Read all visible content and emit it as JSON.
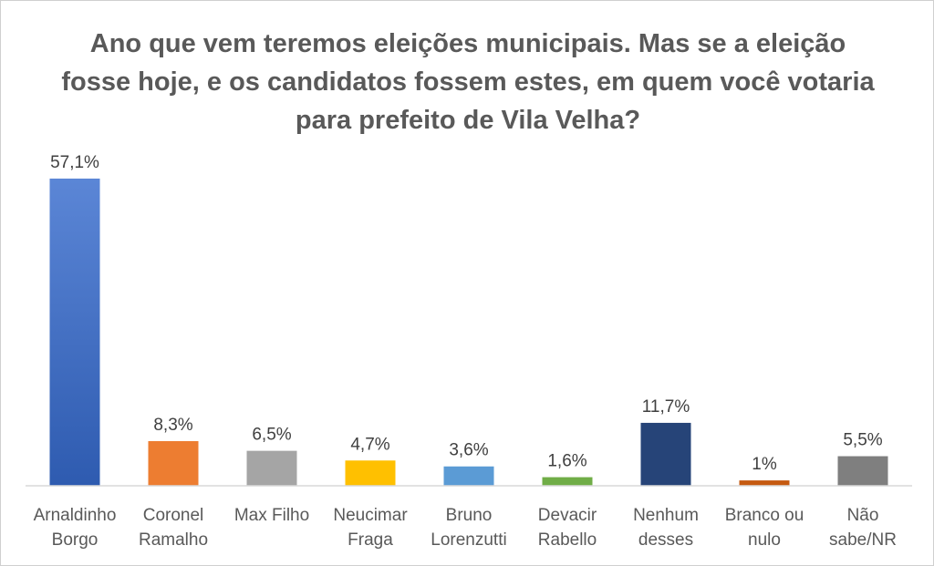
{
  "chart_data": {
    "type": "bar",
    "title": "Ano que vem teremos eleições municipais. Mas se a eleição fosse hoje, e os candidatos fossem estes, em quem você votaria para prefeito de Vila Velha?",
    "categories": [
      [
        "Arnaldinho",
        "Borgo"
      ],
      [
        "Coronel",
        "Ramalho"
      ],
      [
        "Max Filho"
      ],
      [
        "Neucimar",
        "Fraga"
      ],
      [
        "Bruno",
        "Lorenzutti"
      ],
      [
        "Devacir",
        "Rabello"
      ],
      [
        "Nenhum",
        "desses"
      ],
      [
        "Branco ou",
        "nulo"
      ],
      [
        "Não",
        "sabe/NR"
      ]
    ],
    "values": [
      57.1,
      8.3,
      6.5,
      4.7,
      3.6,
      1.6,
      11.7,
      1,
      5.5
    ],
    "value_labels": [
      "57,1%",
      "8,3%",
      "6,5%",
      "4,7%",
      "3,6%",
      "1,6%",
      "11,7%",
      "1%",
      "5,5%"
    ],
    "colors": [
      "#4472C4",
      "#ED7D31",
      "#A5A5A5",
      "#FFC000",
      "#5B9BD5",
      "#70AD47",
      "#264478",
      "#C55A11",
      "#7F7F7F"
    ],
    "ylim": [
      0,
      60
    ],
    "grid": false,
    "legend": "none"
  }
}
